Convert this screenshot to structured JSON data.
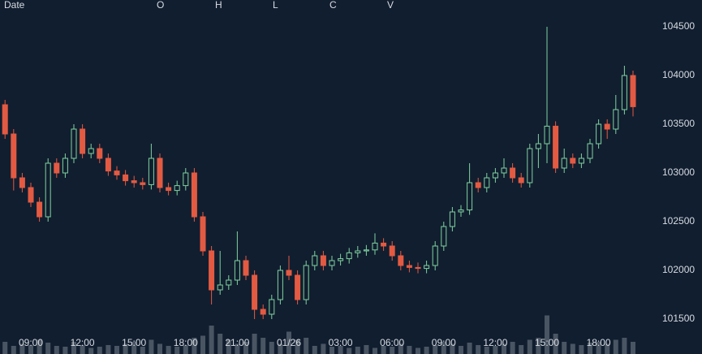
{
  "chart_data": {
    "type": "candlestick",
    "columns": [
      "Date",
      "O",
      "H",
      "L",
      "C",
      "V"
    ],
    "categories": [
      null,
      null,
      null,
      "09:00",
      null,
      null,
      null,
      null,
      null,
      "12:00",
      null,
      null,
      null,
      null,
      null,
      "15:00",
      null,
      null,
      null,
      null,
      null,
      "18:00",
      null,
      null,
      null,
      null,
      null,
      "21:00",
      null,
      null,
      null,
      null,
      null,
      "01/26",
      null,
      null,
      null,
      null,
      null,
      "03:00",
      null,
      null,
      null,
      null,
      null,
      "06:00",
      null,
      null,
      null,
      null,
      null,
      "09:00",
      null,
      null,
      null,
      null,
      null,
      "12:00",
      null,
      null,
      null,
      null,
      null,
      "15:00",
      null,
      null,
      null,
      null,
      null,
      "18:00",
      null,
      null,
      null,
      null
    ],
    "open": [
      103700,
      103400,
      102950,
      102850,
      102700,
      102550,
      103100,
      103000,
      103150,
      103450,
      103200,
      103250,
      103150,
      103020,
      102980,
      102920,
      102900,
      102880,
      103150,
      102850,
      102820,
      102870,
      103000,
      102550,
      102200,
      101800,
      101850,
      101900,
      102100,
      101950,
      101600,
      101550,
      101700,
      102000,
      101950,
      101700,
      102050,
      102150,
      102050,
      102100,
      102120,
      102180,
      102200,
      102210,
      102280,
      102250,
      102150,
      102050,
      102030,
      102020,
      102050,
      102250,
      102450,
      102600,
      102620,
      102900,
      102850,
      102950,
      103000,
      103050,
      102950,
      102900,
      103250,
      103300,
      103480,
      103050,
      103150,
      103100,
      103150,
      103300,
      103500,
      103450,
      103650,
      104000
    ],
    "high": [
      103750,
      103450,
      103000,
      102900,
      102750,
      103150,
      103150,
      103200,
      103500,
      103500,
      103300,
      103300,
      103200,
      103070,
      103030,
      102970,
      102950,
      103300,
      103200,
      102900,
      102920,
      103050,
      103050,
      102600,
      102250,
      102200,
      101950,
      102400,
      102150,
      102000,
      101650,
      101750,
      102050,
      102150,
      102000,
      102100,
      102200,
      102200,
      102150,
      102170,
      102230,
      102250,
      102260,
      102380,
      102330,
      102300,
      102200,
      102100,
      102080,
      102100,
      102300,
      102500,
      102650,
      102670,
      103100,
      102950,
      103000,
      103050,
      103150,
      103100,
      103000,
      103300,
      103400,
      104500,
      103530,
      103250,
      103200,
      103200,
      103350,
      103550,
      103550,
      103800,
      104100,
      104050
    ],
    "low": [
      103350,
      102820,
      102800,
      102650,
      102500,
      102500,
      102950,
      102950,
      103100,
      103150,
      103150,
      103100,
      102970,
      102930,
      102870,
      102850,
      102830,
      102830,
      102800,
      102770,
      102770,
      102820,
      102500,
      102150,
      101650,
      101750,
      101800,
      101850,
      101900,
      101500,
      101500,
      101500,
      101650,
      101900,
      101650,
      101650,
      102000,
      102000,
      102000,
      102050,
      102070,
      102130,
      102150,
      102160,
      102200,
      102100,
      102000,
      101980,
      101970,
      101970,
      102000,
      102200,
      102400,
      102550,
      102570,
      102800,
      102800,
      102900,
      102950,
      102900,
      102850,
      102850,
      103050,
      103100,
      103000,
      103000,
      103050,
      103050,
      103100,
      103250,
      103350,
      103400,
      103600,
      103580
    ],
    "close": [
      103400,
      102950,
      102850,
      102700,
      102550,
      103100,
      103000,
      103150,
      103450,
      103200,
      103250,
      103150,
      103020,
      102980,
      102920,
      102900,
      102880,
      103150,
      102850,
      102820,
      102870,
      103000,
      102550,
      102200,
      101800,
      101850,
      101900,
      102100,
      101950,
      101600,
      101550,
      101700,
      102000,
      101950,
      101700,
      102050,
      102150,
      102050,
      102100,
      102120,
      102180,
      102200,
      102210,
      102280,
      102250,
      102150,
      102050,
      102030,
      102020,
      102050,
      102250,
      102450,
      102600,
      102620,
      102900,
      102850,
      102950,
      103000,
      103050,
      102950,
      102900,
      103250,
      103300,
      103480,
      103050,
      103150,
      103100,
      103150,
      103300,
      103500,
      103450,
      103650,
      104000,
      103680
    ],
    "volume": [
      30,
      20,
      25,
      22,
      35,
      28,
      20,
      18,
      30,
      22,
      15,
      18,
      22,
      20,
      25,
      30,
      18,
      35,
      25,
      20,
      18,
      22,
      40,
      45,
      70,
      50,
      35,
      25,
      30,
      50,
      40,
      30,
      25,
      55,
      35,
      40,
      20,
      25,
      18,
      20,
      15,
      18,
      22,
      15,
      20,
      18,
      25,
      20,
      15,
      18,
      22,
      30,
      25,
      20,
      28,
      22,
      18,
      20,
      25,
      30,
      22,
      35,
      40,
      95,
      50,
      30,
      25,
      22,
      28,
      30,
      25,
      35,
      40,
      30
    ],
    "ylim": [
      101350,
      104775
    ],
    "yticks": [
      101500,
      102000,
      102500,
      103000,
      103500,
      104000,
      104500
    ],
    "up_color": "#7fd1a0",
    "down_color": "#e35a43",
    "volume_color": "#4a5563"
  }
}
